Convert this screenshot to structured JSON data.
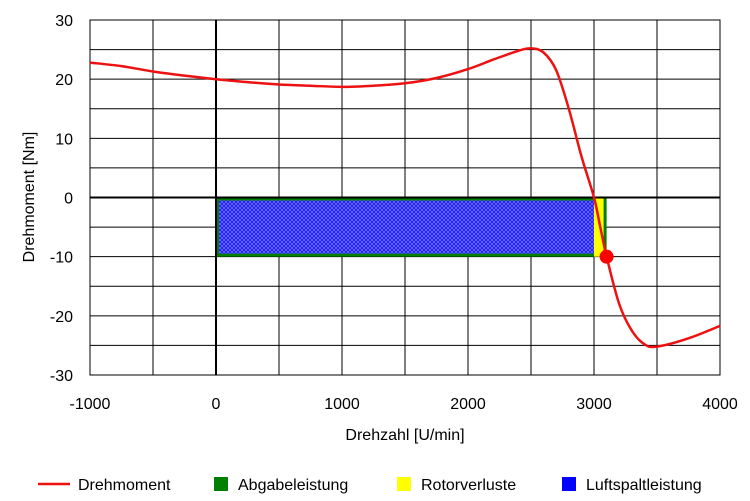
{
  "chart_data": {
    "type": "line",
    "xlabel": "Drehzahl [U/min]",
    "ylabel": "Drehmoment [Nm]",
    "xlim": [
      -1000,
      4000
    ],
    "ylim": [
      -30,
      30
    ],
    "x_ticks": [
      -1000,
      0,
      1000,
      2000,
      3000,
      4000
    ],
    "y_ticks": [
      -30,
      -20,
      -10,
      0,
      10,
      20,
      30
    ],
    "x_tick_labels": [
      "-1000",
      "0",
      "1000",
      "2000",
      "3000",
      "4000"
    ],
    "y_tick_labels": [
      "-30",
      "-20",
      "-10",
      "0",
      "10",
      "20",
      "30"
    ],
    "grid": true,
    "series": [
      {
        "name": "Drehmoment",
        "color": "#ee1111",
        "x": [
          -1000,
          -750,
          -500,
          -250,
          0,
          250,
          500,
          750,
          1000,
          1250,
          1500,
          1750,
          2000,
          2200,
          2400,
          2500,
          2600,
          2700,
          2800,
          2900,
          3000,
          3050,
          3100,
          3200,
          3300,
          3400,
          3500,
          3750,
          4000
        ],
        "y": [
          22.8,
          22.2,
          21.3,
          20.6,
          20.0,
          19.5,
          19.1,
          18.9,
          18.7,
          18.9,
          19.3,
          20.2,
          21.7,
          23.3,
          24.8,
          25.2,
          24.5,
          21.5,
          15.0,
          7.0,
          0.0,
          -5.0,
          -10.0,
          -18.0,
          -22.5,
          -24.8,
          -25.2,
          -23.8,
          -21.7
        ]
      }
    ],
    "areas": [
      {
        "name": "Abgabeleistung",
        "color": "#008000",
        "x_range": [
          0,
          3100
        ],
        "y_range": [
          -10,
          0
        ]
      },
      {
        "name": "Rotorverluste",
        "color": "#ffff00",
        "x_range": [
          3000,
          3100
        ],
        "y_range": [
          -10,
          0
        ]
      },
      {
        "name": "Luftspaltleistung",
        "color": "#0000ff",
        "x_range": [
          0,
          3000
        ],
        "y_range": [
          -10,
          0
        ]
      }
    ],
    "operating_point": {
      "x": 3100,
      "y": -10,
      "color": "#ff0000"
    },
    "legend_position": "bottom",
    "legend": [
      {
        "label": "Drehmoment",
        "type": "line",
        "color": "#ee1111"
      },
      {
        "label": "Abgabeleistung",
        "type": "box",
        "color": "#008000"
      },
      {
        "label": "Rotorverluste",
        "type": "box",
        "color": "#ffff00"
      },
      {
        "label": "Luftspaltleistung",
        "type": "box",
        "color": "#0000ff"
      }
    ]
  }
}
